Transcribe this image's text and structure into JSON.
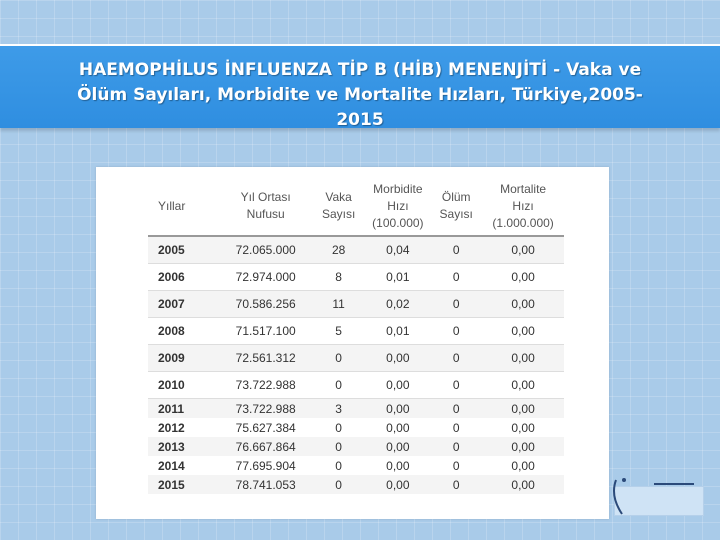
{
  "slide": {
    "title_line1": "HAEMOPHİLUS İNFLUENZA TİP B (HİB) MENENJİTİ - Vaka ve",
    "title_line2": "Ölüm Sayıları, Morbidite ve Mortalite Hızları, Türkiye,2005-",
    "title_line3": "2015"
  },
  "table": {
    "headers": {
      "year": "Yıllar",
      "population": "Yıl Ortası Nufusu",
      "cases": "Vaka Sayısı",
      "morbidity_l1": "Morbidite",
      "morbidity_l2": "Hızı",
      "morbidity_l3": "(100.000)",
      "deaths": "Ölüm Sayısı",
      "mortality_l1": "Mortalite",
      "mortality_l2": "Hızı",
      "mortality_l3": "(1.000.000)"
    },
    "rows": [
      {
        "year": "2005",
        "population": "72.065.000",
        "cases": "28",
        "morbidity": "0,04",
        "deaths": "0",
        "mortality": "0,00"
      },
      {
        "year": "2006",
        "population": "72.974.000",
        "cases": "8",
        "morbidity": "0,01",
        "deaths": "0",
        "mortality": "0,00"
      },
      {
        "year": "2007",
        "population": "70.586.256",
        "cases": "11",
        "morbidity": "0,02",
        "deaths": "0",
        "mortality": "0,00"
      },
      {
        "year": "2008",
        "population": "71.517.100",
        "cases": "5",
        "morbidity": "0,01",
        "deaths": "0",
        "mortality": "0,00"
      },
      {
        "year": "2009",
        "population": "72.561.312",
        "cases": "0",
        "morbidity": "0,00",
        "deaths": "0",
        "mortality": "0,00"
      },
      {
        "year": "2010",
        "population": "73.722.988",
        "cases": "0",
        "morbidity": "0,00",
        "deaths": "0",
        "mortality": "0,00"
      },
      {
        "year": "2011",
        "population": "73.722.988",
        "cases": "3",
        "morbidity": "0,00",
        "deaths": "0",
        "mortality": "0,00"
      },
      {
        "year": "2012",
        "population": "75.627.384",
        "cases": "0",
        "morbidity": "0,00",
        "deaths": "0",
        "mortality": "0,00"
      },
      {
        "year": "2013",
        "population": "76.667.864",
        "cases": "0",
        "morbidity": "0,00",
        "deaths": "0",
        "mortality": "0,00"
      },
      {
        "year": "2014",
        "population": "77.695.904",
        "cases": "0",
        "morbidity": "0,00",
        "deaths": "0",
        "mortality": "0,00"
      },
      {
        "year": "2015",
        "population": "78.741.053",
        "cases": "0",
        "morbidity": "0,00",
        "deaths": "0",
        "mortality": "0,00"
      }
    ]
  },
  "colors": {
    "background": "#a9cbe9",
    "title_band": "#3e9be8",
    "title_text": "#ffffff"
  }
}
